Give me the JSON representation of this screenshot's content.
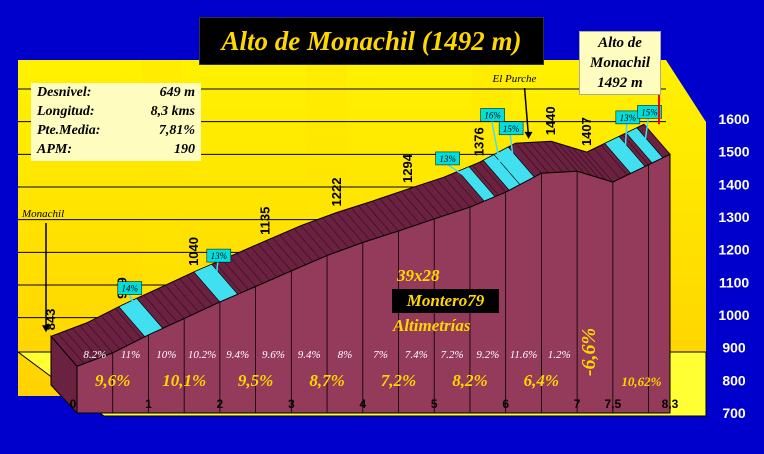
{
  "title": "Alto de Monachil (1492 m)",
  "summit": {
    "line1": "Alto de",
    "line2": "Monachil",
    "line3": "1492 m"
  },
  "stats": [
    {
      "label": "Desnivel:",
      "value": "649 m"
    },
    {
      "label": "Longitud:",
      "value": "8,3 kms"
    },
    {
      "label": "Pte.Media:",
      "value": "7,81%"
    },
    {
      "label": "APM:",
      "value": "190"
    }
  ],
  "credits": {
    "size": "39x28",
    "author": "Montero79",
    "brand": "Altimetrías"
  },
  "place_labels": [
    {
      "text": "Monachil",
      "x": 0
    },
    {
      "text": "El Purche",
      "x": 6.6
    }
  ],
  "colors": {
    "background": "#0000cc",
    "wall": "#ffe000",
    "floor": "#ffff33",
    "profile": "#943a5a",
    "profile_side": "#6b2140",
    "steep": "#40e0f0",
    "text_yellow": "#ffd700"
  },
  "chart_data": {
    "type": "area",
    "x_axis": {
      "ticks": [
        0,
        1,
        2,
        3,
        4,
        5,
        6,
        7,
        7.5,
        8.3
      ],
      "tick_labels": [
        "0",
        "1",
        "2",
        "3",
        "4",
        "5",
        "6",
        "7",
        "7,5",
        "8,3"
      ]
    },
    "y_axis": {
      "min": 700,
      "max": 1600,
      "ticks": [
        700,
        800,
        900,
        1000,
        1100,
        1200,
        1300,
        1400,
        1500,
        1600
      ]
    },
    "elevation_labels": [
      {
        "x": 0,
        "altitude": 843,
        "text": "843"
      },
      {
        "x": 1,
        "altitude": 939,
        "text": "939"
      },
      {
        "x": 2,
        "altitude": 1040,
        "text": "1040"
      },
      {
        "x": 3,
        "altitude": 1135,
        "text": "1135"
      },
      {
        "x": 4,
        "altitude": 1222,
        "text": "1222"
      },
      {
        "x": 5,
        "altitude": 1294,
        "text": "1294"
      },
      {
        "x": 6,
        "altitude": 1376,
        "text": "1376"
      },
      {
        "x": 7,
        "altitude": 1440,
        "text": "1440"
      },
      {
        "x": 7.5,
        "altitude": 1407,
        "text": "1407"
      }
    ],
    "profile": [
      {
        "x": 0,
        "y": 843
      },
      {
        "x": 0.5,
        "y": 884
      },
      {
        "x": 1,
        "y": 939
      },
      {
        "x": 1.5,
        "y": 989
      },
      {
        "x": 2,
        "y": 1040
      },
      {
        "x": 2.5,
        "y": 1087
      },
      {
        "x": 3,
        "y": 1135
      },
      {
        "x": 3.5,
        "y": 1182
      },
      {
        "x": 4,
        "y": 1222
      },
      {
        "x": 4.5,
        "y": 1257
      },
      {
        "x": 5,
        "y": 1294
      },
      {
        "x": 5.5,
        "y": 1330
      },
      {
        "x": 6,
        "y": 1376
      },
      {
        "x": 6.5,
        "y": 1434
      },
      {
        "x": 7,
        "y": 1440
      },
      {
        "x": 7.5,
        "y": 1407
      },
      {
        "x": 8.3,
        "y": 1492
      }
    ],
    "segment_gradients": [
      "8.2%",
      "11%",
      "10%",
      "10.2%",
      "9.4%",
      "9.6%",
      "9.4%",
      "8%",
      "7%",
      "7.4%",
      "7.2%",
      "9.2%",
      "11.6%",
      "1.2%"
    ],
    "km_gradients": [
      "9,6%",
      "10,1%",
      "9,5%",
      "8,7%",
      "7,2%",
      "8,2%",
      "6,4%",
      "-6,6%",
      "10,62%"
    ],
    "steep_sections": [
      {
        "label": "14%",
        "from": 0.95,
        "to": 1.2
      },
      {
        "label": "13%",
        "from": 2.0,
        "to": 2.25
      },
      {
        "label": "13%",
        "from": 5.7,
        "to": 5.85
      },
      {
        "label": "16%",
        "from": 6.05,
        "to": 6.2
      },
      {
        "label": "15%",
        "from": 6.2,
        "to": 6.4
      },
      {
        "label": "13%",
        "from": 7.75,
        "to": 7.95
      },
      {
        "label": "15%",
        "from": 8.05,
        "to": 8.2
      }
    ]
  }
}
